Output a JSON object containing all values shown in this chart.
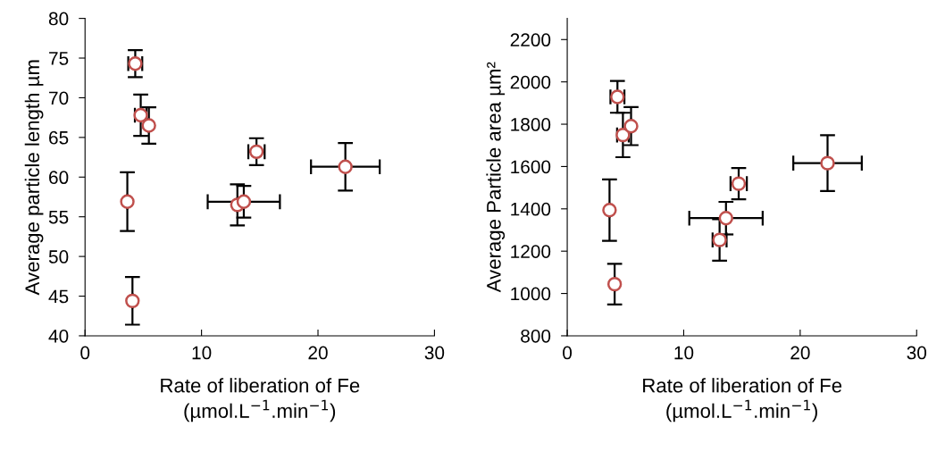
{
  "chart_data": [
    {
      "type": "scatter",
      "xlabel": "Rate of liberation of Fe\n(µmol.L$^{−1}$.min$^{−1}$)",
      "ylabel": "Average particle length µm",
      "xlim": [
        0,
        30
      ],
      "xticks": [
        0,
        10,
        20,
        30
      ],
      "ylim": [
        40,
        80
      ],
      "yticks": [
        40,
        45,
        50,
        55,
        60,
        65,
        70,
        75,
        80
      ],
      "grid": false,
      "legend": false,
      "marker": "circle",
      "series": [
        {
          "color": "#c0504d",
          "x": [
            4.31,
            4.78,
            5.48,
            3.63,
            4.07,
            13.08,
            13.63,
            14.72,
            22.35
          ],
          "values": [
            74.3,
            67.8,
            66.5,
            56.9,
            44.4,
            56.5,
            56.9,
            63.2,
            61.3
          ],
          "errors": [
            1.7,
            2.6,
            2.3,
            3.7,
            3.0,
            2.6,
            2.0,
            1.7,
            3.0
          ],
          "xerrors": [
            0.6,
            0.5,
            null,
            null,
            null,
            null,
            3.1,
            0.7,
            2.95
          ]
        }
      ]
    },
    {
      "type": "scatter",
      "xlabel": "Rate of liberation of Fe\n(µmol.L$^{−1}$.min$^{−1}$)",
      "ylabel": "Average Particle area µm²",
      "xlim": [
        0,
        30
      ],
      "xticks": [
        0,
        10,
        20,
        30
      ],
      "ylim": [
        800,
        2300
      ],
      "yticks": [
        800,
        1000,
        1200,
        1400,
        1600,
        1800,
        2000,
        2200
      ],
      "grid": false,
      "legend": false,
      "marker": "circle",
      "series": [
        {
          "color": "#c0504d",
          "x": [
            4.31,
            4.78,
            5.48,
            3.63,
            4.07,
            13.08,
            13.63,
            14.72,
            22.35
          ],
          "values": [
            1929,
            1749,
            1791,
            1394,
            1044,
            1253,
            1356,
            1519,
            1616
          ],
          "errors": [
            75,
            105,
            90,
            145,
            96,
            98,
            77,
            74,
            132
          ],
          "xerrors": [
            0.6,
            0.5,
            null,
            null,
            null,
            0.6,
            3.15,
            0.7,
            2.94
          ]
        }
      ]
    }
  ]
}
